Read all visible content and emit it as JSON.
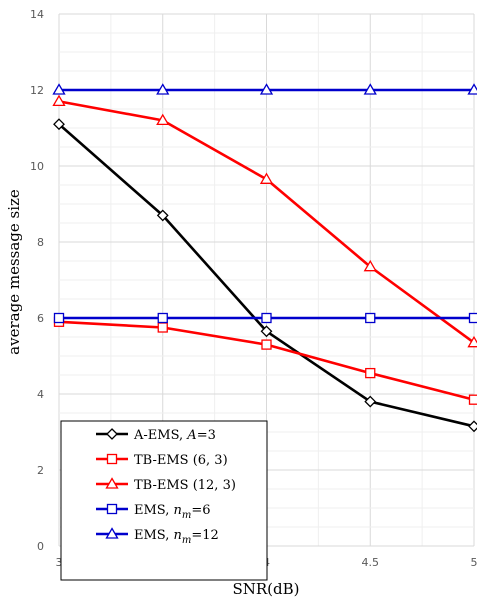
{
  "chart_data": {
    "type": "line",
    "title": "",
    "xlabel": "SNR(dB)",
    "ylabel": "average message size",
    "x": [
      3,
      3.5,
      4,
      4.5,
      5
    ],
    "x_tick_labels": [
      "3",
      "3.5",
      "4",
      "4.5",
      "5"
    ],
    "y_tick_labels": [
      "0",
      "2",
      "4",
      "6",
      "8",
      "10",
      "12",
      "14"
    ],
    "xlim": [
      3,
      5
    ],
    "ylim": [
      0,
      14
    ],
    "grid": true,
    "legend_position": "bottom-left",
    "series": [
      {
        "label_parts": [
          {
            "t": "A-EMS, "
          },
          {
            "t": "A",
            "i": true
          },
          {
            "t": "=3"
          }
        ],
        "color": "#000000",
        "marker": "diamond",
        "values": [
          11.1,
          8.7,
          5.65,
          3.8,
          3.15
        ]
      },
      {
        "label_parts": [
          {
            "t": "TB-EMS (6, 3)"
          }
        ],
        "color": "#ff0000",
        "marker": "square",
        "values": [
          5.9,
          5.75,
          5.3,
          4.55,
          3.85
        ]
      },
      {
        "label_parts": [
          {
            "t": "TB-EMS (12, 3)"
          }
        ],
        "color": "#ff0000",
        "marker": "triangle",
        "values": [
          11.7,
          11.2,
          9.65,
          7.35,
          5.35
        ]
      },
      {
        "label_parts": [
          {
            "t": "EMS, "
          },
          {
            "t": "n",
            "i": true
          },
          {
            "t": "m",
            "sub": true
          },
          {
            "t": "=6"
          }
        ],
        "color": "#0000cc",
        "marker": "square",
        "values": [
          6,
          6,
          6,
          6,
          6
        ]
      },
      {
        "label_parts": [
          {
            "t": "EMS, "
          },
          {
            "t": "n",
            "i": true
          },
          {
            "t": "m",
            "sub": true
          },
          {
            "t": "=12"
          }
        ],
        "color": "#0000cc",
        "marker": "triangle",
        "values": [
          12,
          12,
          12,
          12,
          12
        ]
      }
    ]
  }
}
